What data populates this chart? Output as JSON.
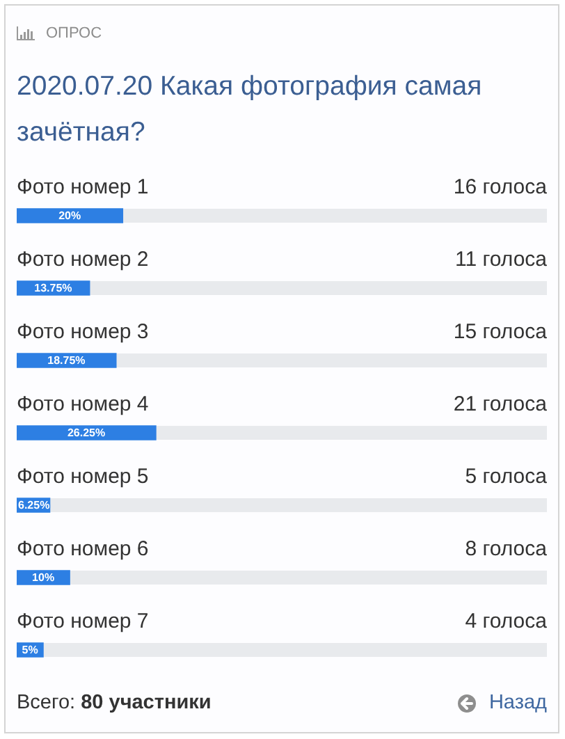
{
  "chart_data": {
    "type": "bar",
    "orientation": "horizontal",
    "title": "2020.07.20 Какая фотография самая зачётная?",
    "categories": [
      "Фото номер 1",
      "Фото номер 2",
      "Фото номер 3",
      "Фото номер 4",
      "Фото номер 5",
      "Фото номер 6",
      "Фото номер 7"
    ],
    "values": [
      20,
      13.75,
      18.75,
      26.25,
      6.25,
      10,
      5
    ],
    "value_labels": [
      "20%",
      "13.75%",
      "18.75%",
      "26.25%",
      "6.25%",
      "10%",
      "5%"
    ],
    "color": "#2d7fe3",
    "xlim": [
      0,
      100
    ],
    "tick_labels": "y",
    "annotations": [
      "ОПРОС",
      "Всего:",
      "80 участники",
      "Назад",
      "16 голоса",
      "11 голоса",
      "15 голоса",
      "21 голоса",
      "5 голоса",
      "8 голоса",
      "4 голоса"
    ]
  }
}
